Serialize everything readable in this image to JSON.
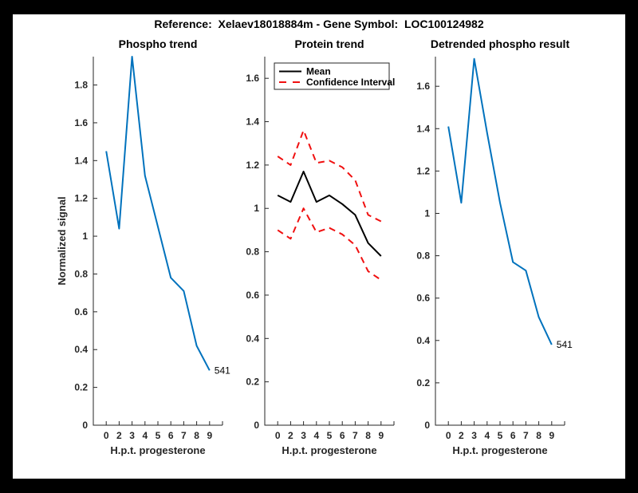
{
  "page_title": "Reference:  Xelaev18018884m - Gene Symbol:  LOC100124982",
  "colors": {
    "line_blue": "#0072bd",
    "ci_red": "#f01010",
    "mean_black": "#000000",
    "axis_gray": "#262626",
    "figure_bg": "#ffffff",
    "page_bg": "#000000"
  },
  "chart_data": [
    {
      "type": "line",
      "title": "Phospho trend",
      "xlabel": "H.p.t. progesterone",
      "ylabel": "Normalized signal",
      "x_tick_labels": [
        "0",
        "2",
        "3",
        "4",
        "5",
        "6",
        "7",
        "8",
        "9"
      ],
      "ylim": [
        0,
        1.95
      ],
      "ytick_step": 0.2,
      "grid": false,
      "legend": null,
      "end_label": "541",
      "series": [
        {
          "name": "phospho-signal",
          "color_key": "line_blue",
          "dashed": false,
          "values": [
            1.45,
            1.04,
            1.95,
            1.32,
            1.05,
            0.78,
            0.71,
            0.42,
            0.29
          ]
        }
      ]
    },
    {
      "type": "line",
      "title": "Protein trend",
      "xlabel": "H.p.t. progesterone",
      "ylabel": "",
      "x_tick_labels": [
        "0",
        "2",
        "3",
        "4",
        "5",
        "6",
        "7",
        "8",
        "9"
      ],
      "ylim": [
        0,
        1.7
      ],
      "ytick_step": 0.2,
      "grid": false,
      "legend": {
        "position": "top-left",
        "entries": [
          {
            "label": "Mean",
            "color_key": "mean_black",
            "dashed": false
          },
          {
            "label": "Confidence Interval",
            "color_key": "ci_red",
            "dashed": true
          }
        ]
      },
      "end_label": null,
      "series": [
        {
          "name": "mean",
          "color_key": "mean_black",
          "dashed": false,
          "values": [
            1.06,
            1.03,
            1.17,
            1.03,
            1.06,
            1.02,
            0.97,
            0.84,
            0.78
          ]
        },
        {
          "name": "confidence-upper",
          "color_key": "ci_red",
          "dashed": true,
          "values": [
            1.24,
            1.2,
            1.36,
            1.21,
            1.22,
            1.19,
            1.13,
            0.97,
            0.94
          ]
        },
        {
          "name": "confidence-lower",
          "color_key": "ci_red",
          "dashed": true,
          "values": [
            0.9,
            0.86,
            1.0,
            0.89,
            0.91,
            0.88,
            0.83,
            0.71,
            0.67
          ]
        }
      ]
    },
    {
      "type": "line",
      "title": "Detrended phospho result",
      "xlabel": "H.p.t. progesterone",
      "ylabel": "",
      "x_tick_labels": [
        "0",
        "2",
        "3",
        "4",
        "5",
        "6",
        "7",
        "8",
        "9"
      ],
      "ylim": [
        0,
        1.74
      ],
      "ytick_step": 0.2,
      "grid": false,
      "legend": null,
      "end_label": "541",
      "series": [
        {
          "name": "detrended-phospho-signal",
          "color_key": "line_blue",
          "dashed": false,
          "values": [
            1.41,
            1.05,
            1.73,
            1.38,
            1.05,
            0.77,
            0.73,
            0.51,
            0.38
          ]
        }
      ]
    }
  ]
}
